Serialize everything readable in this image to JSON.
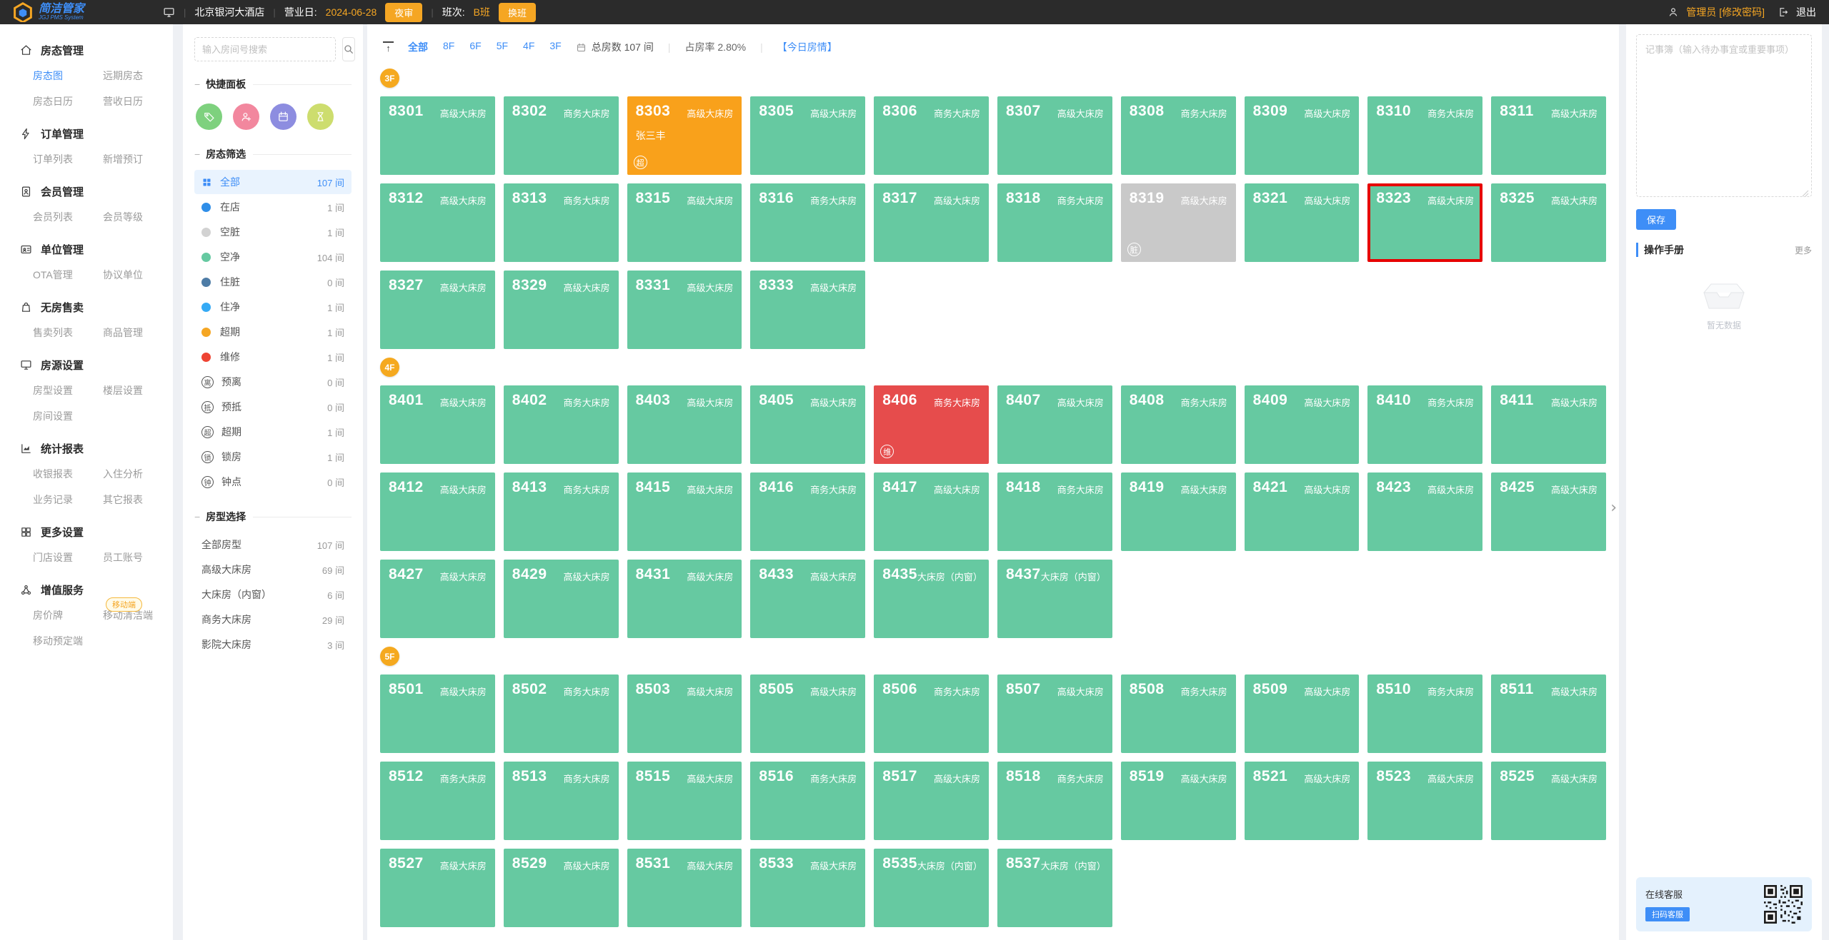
{
  "colors": {
    "accent_blue": "#3e8ef7",
    "accent_orange": "#f5a623",
    "room_clean": "#66c9a1",
    "room_overdue": "#f9a11b",
    "room_repair": "#e64c4c",
    "room_dirty": "#c9c9c9",
    "selected_border": "#e60000"
  },
  "topbar": {
    "logo_title": "简洁管家",
    "logo_subtitle": "JGJ PMS System",
    "hotel_name": "北京银河大酒店",
    "business_day_label": "营业日:",
    "business_day": "2024-06-28",
    "night_audit_label": "夜审",
    "shift_label": "班次:",
    "shift_value": "B班",
    "change_shift_label": "换班",
    "user_name": "管理员",
    "change_password_label": "[修改密码]",
    "logout_label": "退出"
  },
  "sidebar": {
    "sections": [
      {
        "title": "房态管理",
        "icon": "home-icon",
        "items": [
          {
            "label": "房态图",
            "active": true
          },
          {
            "label": "远期房态"
          },
          {
            "label": "房态日历"
          },
          {
            "label": "营收日历"
          }
        ]
      },
      {
        "title": "订单管理",
        "icon": "bolt-icon",
        "items": [
          {
            "label": "订单列表"
          },
          {
            "label": "新增预订"
          }
        ]
      },
      {
        "title": "会员管理",
        "icon": "member-icon",
        "items": [
          {
            "label": "会员列表"
          },
          {
            "label": "会员等级"
          }
        ]
      },
      {
        "title": "单位管理",
        "icon": "id-card-icon",
        "items": [
          {
            "label": "OTA管理"
          },
          {
            "label": "协议单位"
          }
        ]
      },
      {
        "title": "无房售卖",
        "icon": "bag-icon",
        "items": [
          {
            "label": "售卖列表"
          },
          {
            "label": "商品管理"
          }
        ]
      },
      {
        "title": "房源设置",
        "icon": "monitor-icon",
        "items": [
          {
            "label": "房型设置"
          },
          {
            "label": "楼层设置"
          },
          {
            "label": "房间设置"
          }
        ]
      },
      {
        "title": "统计报表",
        "icon": "chart-icon",
        "items": [
          {
            "label": "收银报表"
          },
          {
            "label": "入住分析"
          },
          {
            "label": "业务记录"
          },
          {
            "label": "其它报表"
          }
        ]
      },
      {
        "title": "更多设置",
        "icon": "grid-icon",
        "items": [
          {
            "label": "门店设置"
          },
          {
            "label": "员工账号"
          }
        ]
      },
      {
        "title": "增值服务",
        "icon": "share-icon",
        "badge": "移动端",
        "items": [
          {
            "label": "房价牌"
          },
          {
            "label": "移动清洁端"
          },
          {
            "label": "移动预定端"
          }
        ]
      }
    ]
  },
  "filter_panel": {
    "search_placeholder": "输入房间号搜索",
    "quick_panel_title": "快捷面板",
    "quick_icons": [
      {
        "name": "member-card-icon",
        "color": "#7ed17e"
      },
      {
        "name": "add-guest-icon",
        "color": "#f2879e"
      },
      {
        "name": "calendar-icon",
        "color": "#8d8de0"
      },
      {
        "name": "hourglass-icon",
        "color": "#cddd6e"
      }
    ],
    "status_filter_title": "房态筛选",
    "status_filters": [
      {
        "label": "全部",
        "count": "107 间",
        "icon": "grid",
        "active": true
      },
      {
        "label": "在店",
        "count": "1 间",
        "icon": "dot",
        "color": "#2f8ee8"
      },
      {
        "label": "空脏",
        "count": "1 间",
        "icon": "dot",
        "color": "#d2d2d2"
      },
      {
        "label": "空净",
        "count": "104 间",
        "icon": "dot",
        "color": "#66c9a1"
      },
      {
        "label": "住脏",
        "count": "0 间",
        "icon": "dot",
        "color": "#4e7ca6"
      },
      {
        "label": "住净",
        "count": "1 间",
        "icon": "dot",
        "color": "#35aaf5"
      },
      {
        "label": "超期",
        "count": "1 间",
        "icon": "dot",
        "color": "#f5a623"
      },
      {
        "label": "维修",
        "count": "1 间",
        "icon": "dot",
        "color": "#ee4433"
      },
      {
        "label": "预离",
        "count": "0 间",
        "icon": "char",
        "char": "离"
      },
      {
        "label": "预抵",
        "count": "0 间",
        "icon": "char",
        "char": "抵"
      },
      {
        "label": "超期",
        "count": "1 间",
        "icon": "char",
        "char": "超"
      },
      {
        "label": "锁房",
        "count": "1 间",
        "icon": "char",
        "char": "锁"
      },
      {
        "label": "钟点",
        "count": "0 间",
        "icon": "char",
        "char": "钟"
      }
    ],
    "room_type_title": "房型选择",
    "room_types": [
      {
        "label": "全部房型",
        "count": "107 间"
      },
      {
        "label": "高级大床房",
        "count": "69 间"
      },
      {
        "label": "大床房（内窗）",
        "count": "6 间"
      },
      {
        "label": "商务大床房",
        "count": "29 间"
      },
      {
        "label": "影院大床房",
        "count": "3 间"
      }
    ]
  },
  "main": {
    "floor_tabs": [
      {
        "label": "全部",
        "active": true
      },
      {
        "label": "8F"
      },
      {
        "label": "6F"
      },
      {
        "label": "5F"
      },
      {
        "label": "4F"
      },
      {
        "label": "3F"
      }
    ],
    "stats": {
      "total": "总房数 107 间",
      "occupancy": "占房率 2.80%",
      "today_link": "【今日房情】"
    },
    "floors": [
      {
        "name": "3F",
        "rows": [
          [
            {
              "no": "8301",
              "type": "高级大床房"
            },
            {
              "no": "8302",
              "type": "商务大床房"
            },
            {
              "no": "8303",
              "type": "高级大床房",
              "state": "overdue",
              "guest": "张三丰",
              "badge": "超"
            },
            {
              "no": "8305",
              "type": "高级大床房"
            },
            {
              "no": "8306",
              "type": "商务大床房"
            },
            {
              "no": "8307",
              "type": "高级大床房"
            },
            {
              "no": "8308",
              "type": "商务大床房"
            },
            {
              "no": "8309",
              "type": "高级大床房"
            },
            {
              "no": "8310",
              "type": "商务大床房"
            },
            {
              "no": "8311",
              "type": "高级大床房"
            }
          ],
          [
            {
              "no": "8312",
              "type": "高级大床房"
            },
            {
              "no": "8313",
              "type": "商务大床房"
            },
            {
              "no": "8315",
              "type": "高级大床房"
            },
            {
              "no": "8316",
              "type": "商务大床房"
            },
            {
              "no": "8317",
              "type": "高级大床房"
            },
            {
              "no": "8318",
              "type": "商务大床房"
            },
            {
              "no": "8319",
              "type": "高级大床房",
              "state": "dirty",
              "badge": "脏"
            },
            {
              "no": "8321",
              "type": "高级大床房"
            },
            {
              "no": "8323",
              "type": "高级大床房",
              "selected": true
            },
            {
              "no": "8325",
              "type": "高级大床房"
            }
          ],
          [
            {
              "no": "8327",
              "type": "高级大床房"
            },
            {
              "no": "8329",
              "type": "高级大床房"
            },
            {
              "no": "8331",
              "type": "高级大床房"
            },
            {
              "no": "8333",
              "type": "高级大床房"
            }
          ]
        ]
      },
      {
        "name": "4F",
        "rows": [
          [
            {
              "no": "8401",
              "type": "高级大床房"
            },
            {
              "no": "8402",
              "type": "商务大床房"
            },
            {
              "no": "8403",
              "type": "高级大床房"
            },
            {
              "no": "8405",
              "type": "高级大床房"
            },
            {
              "no": "8406",
              "type": "商务大床房",
              "state": "repair",
              "badge": "维"
            },
            {
              "no": "8407",
              "type": "高级大床房"
            },
            {
              "no": "8408",
              "type": "商务大床房"
            },
            {
              "no": "8409",
              "type": "高级大床房"
            },
            {
              "no": "8410",
              "type": "商务大床房"
            },
            {
              "no": "8411",
              "type": "高级大床房"
            }
          ],
          [
            {
              "no": "8412",
              "type": "高级大床房"
            },
            {
              "no": "8413",
              "type": "商务大床房"
            },
            {
              "no": "8415",
              "type": "高级大床房"
            },
            {
              "no": "8416",
              "type": "商务大床房"
            },
            {
              "no": "8417",
              "type": "高级大床房"
            },
            {
              "no": "8418",
              "type": "商务大床房"
            },
            {
              "no": "8419",
              "type": "高级大床房"
            },
            {
              "no": "8421",
              "type": "高级大床房"
            },
            {
              "no": "8423",
              "type": "高级大床房"
            },
            {
              "no": "8425",
              "type": "高级大床房"
            }
          ],
          [
            {
              "no": "8427",
              "type": "高级大床房"
            },
            {
              "no": "8429",
              "type": "高级大床房"
            },
            {
              "no": "8431",
              "type": "高级大床房"
            },
            {
              "no": "8433",
              "type": "高级大床房"
            },
            {
              "no": "8435",
              "type": "大床房（内窗）"
            },
            {
              "no": "8437",
              "type": "大床房（内窗）"
            }
          ]
        ]
      },
      {
        "name": "5F",
        "rows": [
          [
            {
              "no": "8501",
              "type": "高级大床房"
            },
            {
              "no": "8502",
              "type": "商务大床房"
            },
            {
              "no": "8503",
              "type": "高级大床房"
            },
            {
              "no": "8505",
              "type": "高级大床房"
            },
            {
              "no": "8506",
              "type": "商务大床房"
            },
            {
              "no": "8507",
              "type": "高级大床房"
            },
            {
              "no": "8508",
              "type": "商务大床房"
            },
            {
              "no": "8509",
              "type": "高级大床房"
            },
            {
              "no": "8510",
              "type": "商务大床房"
            },
            {
              "no": "8511",
              "type": "高级大床房"
            }
          ],
          [
            {
              "no": "8512",
              "type": "商务大床房"
            },
            {
              "no": "8513",
              "type": "商务大床房"
            },
            {
              "no": "8515",
              "type": "高级大床房"
            },
            {
              "no": "8516",
              "type": "商务大床房"
            },
            {
              "no": "8517",
              "type": "高级大床房"
            },
            {
              "no": "8518",
              "type": "商务大床房"
            },
            {
              "no": "8519",
              "type": "高级大床房"
            },
            {
              "no": "8521",
              "type": "高级大床房"
            },
            {
              "no": "8523",
              "type": "高级大床房"
            },
            {
              "no": "8525",
              "type": "高级大床房"
            }
          ],
          [
            {
              "no": "8527",
              "type": "高级大床房"
            },
            {
              "no": "8529",
              "type": "高级大床房"
            },
            {
              "no": "8531",
              "type": "高级大床房"
            },
            {
              "no": "8533",
              "type": "高级大床房"
            },
            {
              "no": "8535",
              "type": "大床房（内窗）"
            },
            {
              "no": "8537",
              "type": "大床房（内窗）"
            }
          ]
        ]
      }
    ]
  },
  "right_panel": {
    "notebook_placeholder": "记事簿（输入待办事宜或重要事项）",
    "save_label": "保存",
    "manual_title": "操作手册",
    "more_label": "更多",
    "empty_text": "暂无数据",
    "service_title": "在线客服",
    "service_tag": "扫码客服"
  }
}
